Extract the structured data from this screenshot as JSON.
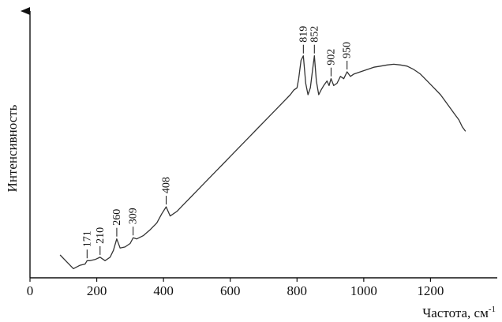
{
  "chart_data": {
    "type": "line",
    "title": "",
    "xlabel": "Частота, см",
    "xlabel_superscript": "-1",
    "ylabel": "Интенсивность",
    "xlim": [
      0,
      1400
    ],
    "ylim": [
      0,
      100
    ],
    "x_ticks": [
      0,
      200,
      400,
      600,
      800,
      1000,
      1200
    ],
    "y_ticks_shown": false,
    "grid": false,
    "line_color": "#333333",
    "series": [
      {
        "x": [
          90,
          110,
          130,
          150,
          165,
          171,
          180,
          195,
          210,
          225,
          240,
          250,
          260,
          270,
          285,
          300,
          309,
          320,
          340,
          360,
          380,
          395,
          408,
          420,
          440,
          460,
          480,
          500,
          520,
          540,
          560,
          580,
          600,
          620,
          640,
          660,
          680,
          700,
          720,
          740,
          760,
          780,
          790,
          800,
          805,
          812,
          819,
          826,
          833,
          840,
          846,
          852,
          858,
          865,
          872,
          880,
          890,
          896,
          902,
          910,
          920,
          930,
          940,
          950,
          960,
          970,
          990,
          1010,
          1030,
          1050,
          1070,
          1090,
          1110,
          1130,
          1150,
          1170,
          1190,
          1210,
          1230,
          1250,
          1270,
          1285,
          1295,
          1305
        ],
        "y": [
          10,
          7,
          4,
          5.5,
          6,
          7.5,
          7.5,
          8,
          9,
          7.5,
          9,
          12,
          17,
          13,
          13.5,
          15,
          17.5,
          17,
          18.5,
          21,
          24,
          28,
          31,
          27,
          29,
          32,
          35,
          38,
          41,
          44,
          47,
          50,
          53,
          56,
          59,
          62,
          65,
          68,
          71,
          74,
          77,
          80,
          82,
          83,
          87,
          95,
          97,
          85,
          80,
          83,
          90,
          97,
          86,
          80,
          82,
          84,
          86,
          84,
          87,
          84,
          85,
          88,
          87,
          90,
          88,
          89,
          90,
          91,
          92,
          92.5,
          93,
          93.3,
          93,
          92.5,
          91,
          89,
          86,
          83,
          80,
          76,
          72,
          69,
          66,
          64
        ]
      }
    ],
    "annotations": [
      {
        "label": "171",
        "x": 171,
        "y": 7.5
      },
      {
        "label": "210",
        "x": 210,
        "y": 9
      },
      {
        "label": "260",
        "x": 260,
        "y": 17
      },
      {
        "label": "309",
        "x": 309,
        "y": 17.5
      },
      {
        "label": "408",
        "x": 408,
        "y": 31
      },
      {
        "label": "819",
        "x": 819,
        "y": 97
      },
      {
        "label": "852",
        "x": 852,
        "y": 97
      },
      {
        "label": "902",
        "x": 902,
        "y": 87
      },
      {
        "label": "950",
        "x": 950,
        "y": 90
      }
    ]
  }
}
